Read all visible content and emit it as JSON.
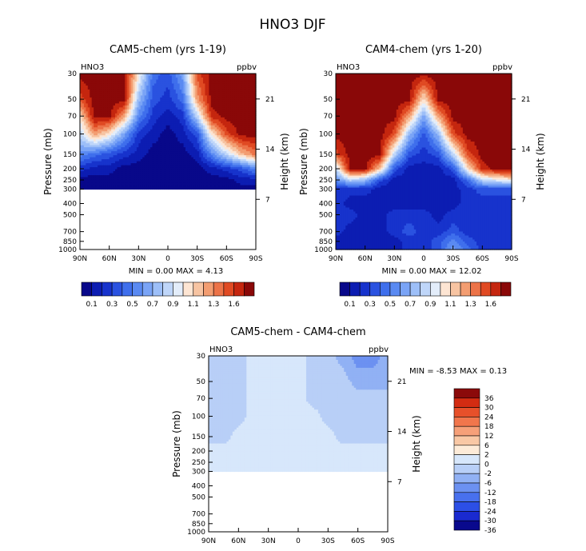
{
  "title": "HNO3 DJF",
  "palette_seq": [
    "#08088a",
    "#0c1db2",
    "#1733cc",
    "#2a52e0",
    "#3f6fec",
    "#5a8af2",
    "#7aa4f6",
    "#9dbff8",
    "#bfd6f9",
    "#e3edfa",
    "#fde5d3",
    "#f7c4a2",
    "#f39d71",
    "#ec7348",
    "#e04a23",
    "#c5260f",
    "#8a0808"
  ],
  "palette_diff": [
    "#09098d",
    "#1a2ad0",
    "#2c4fe6",
    "#4870ee",
    "#6c91f1",
    "#91b1f4",
    "#b8cff7",
    "#d7e7fb",
    "#fdebd8",
    "#f9c8a5",
    "#f6a079",
    "#f1764c",
    "#e7502a",
    "#d32c12",
    "#8b0a0a"
  ],
  "chart_data": [
    {
      "type": "heatmap",
      "id": "panel1",
      "title": "CAM5-chem (yrs 1-19)",
      "variable": "HNO3",
      "units": "ppbv",
      "xlabel": "",
      "ylabel": "Pressure (mb)",
      "ylabel_right": "Height (km)",
      "x_ticks": [
        "90N",
        "60N",
        "30N",
        "0",
        "30S",
        "60S",
        "90S"
      ],
      "y_ticks": [
        "30",
        "50",
        "70",
        "100",
        "150",
        "200",
        "250",
        "300",
        "400",
        "500",
        "700",
        "850",
        "1000"
      ],
      "right_ticks": [
        "21",
        "14",
        "7"
      ],
      "summary": "MIN =    0.00   MAX =    4.13",
      "colorbar_labels": [
        "0.1",
        "0.3",
        "0.5",
        "0.7",
        "0.9",
        "1.1",
        "1.3",
        "1.6"
      ],
      "latitudes": [
        -90,
        -75,
        -60,
        -45,
        -30,
        -15,
        0,
        15,
        30,
        45,
        60,
        75,
        90
      ],
      "levels": [
        30,
        50,
        70,
        100,
        150,
        200,
        250,
        300
      ],
      "values": [
        [
          16,
          16,
          16,
          16,
          14,
          6,
          3,
          4,
          10,
          16,
          16,
          16,
          16
        ],
        [
          16,
          16,
          16,
          16,
          12,
          4,
          2,
          3,
          7,
          16,
          16,
          16,
          14
        ],
        [
          16,
          16,
          16,
          15,
          8,
          2,
          1,
          2,
          5,
          12,
          16,
          16,
          10
        ],
        [
          16,
          16,
          14,
          10,
          3,
          1,
          0,
          1,
          2,
          6,
          10,
          12,
          8
        ],
        [
          13,
          11,
          8,
          5,
          1,
          0,
          0,
          0,
          1,
          2,
          3,
          4,
          5
        ],
        [
          5,
          3,
          2,
          1,
          0,
          0,
          0,
          0,
          0,
          0,
          1,
          1,
          2
        ],
        [
          1,
          1,
          0,
          0,
          0,
          0,
          0,
          0,
          0,
          0,
          0,
          0,
          0
        ],
        [
          0,
          0,
          0,
          0,
          0,
          0,
          0,
          0,
          0,
          0,
          0,
          0,
          0
        ]
      ]
    },
    {
      "type": "heatmap",
      "id": "panel2",
      "title": "CAM4-chem (yrs 1-20)",
      "variable": "HNO3",
      "units": "ppbv",
      "xlabel": "",
      "ylabel": "Pressure (mb)",
      "ylabel_right": "Height (km)",
      "x_ticks": [
        "90N",
        "60N",
        "30N",
        "0",
        "30S",
        "60S",
        "90S"
      ],
      "y_ticks": [
        "30",
        "50",
        "70",
        "100",
        "150",
        "200",
        "250",
        "300",
        "400",
        "500",
        "700",
        "850",
        "1000"
      ],
      "right_ticks": [
        "21",
        "14",
        "7"
      ],
      "summary": "MIN =    0.00   MAX =  12.02",
      "colorbar_labels": [
        "0.1",
        "0.3",
        "0.5",
        "0.7",
        "0.9",
        "1.1",
        "1.3",
        "1.6"
      ],
      "latitudes": [
        -90,
        -75,
        -60,
        -45,
        -30,
        -15,
        0,
        15,
        30,
        45,
        60,
        75,
        90
      ],
      "levels": [
        30,
        50,
        70,
        100,
        150,
        200,
        250,
        300,
        400,
        500,
        700,
        850,
        1000
      ],
      "values": [
        [
          16,
          16,
          16,
          16,
          16,
          16,
          16,
          16,
          16,
          16,
          16,
          16,
          16
        ],
        [
          16,
          16,
          16,
          16,
          16,
          16,
          10,
          16,
          16,
          16,
          16,
          16,
          16
        ],
        [
          16,
          16,
          16,
          16,
          16,
          12,
          6,
          12,
          16,
          16,
          16,
          16,
          16
        ],
        [
          16,
          16,
          16,
          16,
          14,
          7,
          3,
          7,
          14,
          16,
          16,
          16,
          16
        ],
        [
          16,
          16,
          16,
          14,
          8,
          3,
          2,
          3,
          8,
          16,
          16,
          16,
          14
        ],
        [
          16,
          16,
          15,
          10,
          3,
          1,
          1,
          1,
          3,
          11,
          16,
          16,
          8
        ],
        [
          10,
          9,
          8,
          4,
          1,
          1,
          1,
          1,
          1,
          3,
          7,
          8,
          5
        ],
        [
          3,
          3,
          3,
          2,
          1,
          1,
          1,
          1,
          1,
          1,
          2,
          2,
          2
        ],
        [
          2,
          2,
          2,
          2,
          1,
          1,
          1,
          1,
          1,
          1,
          1,
          1,
          2
        ],
        [
          2,
          2,
          2,
          2,
          2,
          1,
          2,
          2,
          2,
          1,
          1,
          2,
          2
        ],
        [
          2,
          2,
          2,
          2,
          3,
          2,
          2,
          3,
          2,
          1,
          1,
          1,
          2
        ],
        [
          2,
          2,
          2,
          3,
          5,
          3,
          2,
          2,
          1,
          1,
          1,
          1,
          1
        ],
        [
          2,
          2,
          2,
          4,
          6,
          3,
          2,
          2,
          1,
          1,
          1,
          1,
          1
        ]
      ]
    },
    {
      "type": "heatmap",
      "id": "panel3",
      "title": "CAM5-chem - CAM4-chem",
      "variable": "HNO3",
      "units": "ppbv",
      "xlabel": "",
      "ylabel": "Pressure (mb)",
      "ylabel_right": "Height (km)",
      "x_ticks": [
        "90N",
        "60N",
        "30N",
        "0",
        "30S",
        "60S",
        "90S"
      ],
      "y_ticks": [
        "30",
        "50",
        "70",
        "100",
        "150",
        "200",
        "250",
        "300",
        "400",
        "500",
        "700",
        "850",
        "1000"
      ],
      "right_ticks": [
        "21",
        "14",
        "7"
      ],
      "summary": "MIN =   -8.53   MAX =    0.13",
      "colorbar_labels": [
        "36",
        "30",
        "24",
        "18",
        "12",
        "6",
        "2",
        "0",
        "-2",
        "-6",
        "-12",
        "-18",
        "-24",
        "-30",
        "-36"
      ],
      "latitudes": [
        -90,
        -75,
        -60,
        -45,
        -30,
        -15,
        0,
        15,
        30,
        45,
        60,
        75,
        90
      ],
      "levels": [
        30,
        50,
        70,
        100,
        150,
        200,
        250,
        300
      ],
      "values": [
        [
          5,
          4,
          4,
          5,
          6,
          6,
          7,
          7,
          7,
          7,
          6,
          6,
          6
        ],
        [
          5,
          5,
          5,
          6,
          6,
          6,
          7,
          7,
          7,
          7,
          6,
          6,
          6
        ],
        [
          6,
          6,
          6,
          6,
          6,
          6,
          7,
          7,
          7,
          7,
          6,
          6,
          6
        ],
        [
          6,
          6,
          6,
          6,
          6,
          7,
          7,
          7,
          7,
          7,
          6,
          6,
          6
        ],
        [
          6,
          6,
          6,
          6,
          7,
          7,
          7,
          7,
          7,
          7,
          7,
          6,
          6
        ],
        [
          7,
          7,
          7,
          7,
          7,
          7,
          7,
          7,
          7,
          7,
          7,
          7,
          7
        ],
        [
          7,
          7,
          7,
          7,
          7,
          7,
          7,
          7,
          7,
          7,
          7,
          7,
          7
        ],
        [
          7,
          7,
          7,
          7,
          7,
          7,
          7,
          7,
          7,
          7,
          7,
          7,
          7
        ]
      ]
    }
  ]
}
